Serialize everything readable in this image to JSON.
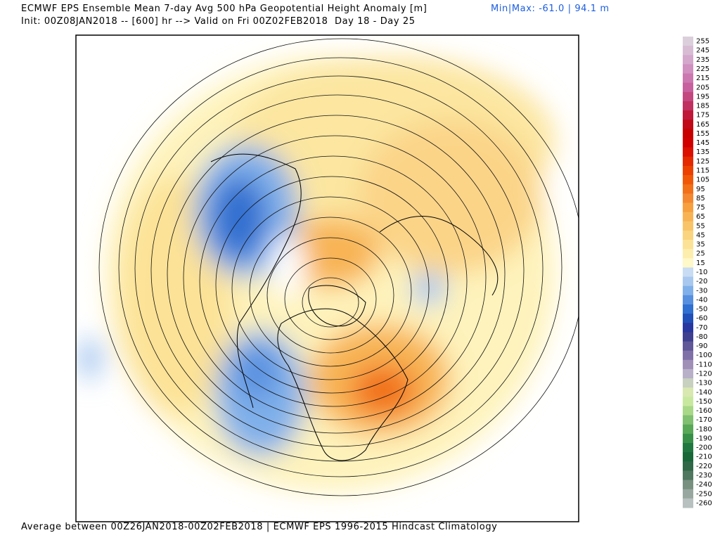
{
  "header": {
    "title": "ECMWF EPS Ensemble Mean 7-day Avg 500 hPa Geopotential Height Anomaly [m]",
    "minmax": "Min|Max: -61.0 | 94.1 m",
    "init": "Init: 00Z08JAN2018 -- [600] hr --> Valid on Fri 00Z02FEB2018  Day 18 - Day 25"
  },
  "footer": "Average between 00Z26JAN2018-00Z02FEB2018 | ECMWF EPS 1996-2015 Hindcast Climatology",
  "colorbar": {
    "labels": [
      255,
      245,
      235,
      225,
      215,
      205,
      195,
      185,
      175,
      165,
      155,
      145,
      135,
      125,
      115,
      105,
      95,
      85,
      75,
      65,
      55,
      45,
      35,
      25,
      15,
      -10,
      -20,
      -30,
      -40,
      -50,
      -60,
      -70,
      -80,
      -90,
      -100,
      -110,
      -120,
      -130,
      -140,
      -150,
      -160,
      -170,
      -180,
      -190,
      -200,
      -210,
      -220,
      -230,
      -240,
      -250,
      -260
    ],
    "colors": [
      "#dccfdc",
      "#d8bcd4",
      "#d4a8cc",
      "#d090c0",
      "#cc78b0",
      "#c860a0",
      "#c44880",
      "#c03060",
      "#c01838",
      "#c00818",
      "#c80000",
      "#d00000",
      "#dc1000",
      "#e42800",
      "#ec4000",
      "#f05808",
      "#f27018",
      "#f48830",
      "#f7a040",
      "#f8b454",
      "#f9c468",
      "#fad47e",
      "#fce296",
      "#fdeeae",
      "#fff8c8",
      "#c8dcf4",
      "#a8c8f0",
      "#80b0ea",
      "#5890e0",
      "#3070d0",
      "#2050b8",
      "#2838a0",
      "#404090",
      "#605898",
      "#8070a8",
      "#a090b8",
      "#b8b0c8",
      "#c8d0c0",
      "#d8e8b0",
      "#c8e8a0",
      "#a8d888",
      "#80c070",
      "#58a858",
      "#389048",
      "#207840",
      "#186838",
      "#306848",
      "#507860",
      "#789080",
      "#98a8a0",
      "#b8c0c0"
    ]
  }
}
